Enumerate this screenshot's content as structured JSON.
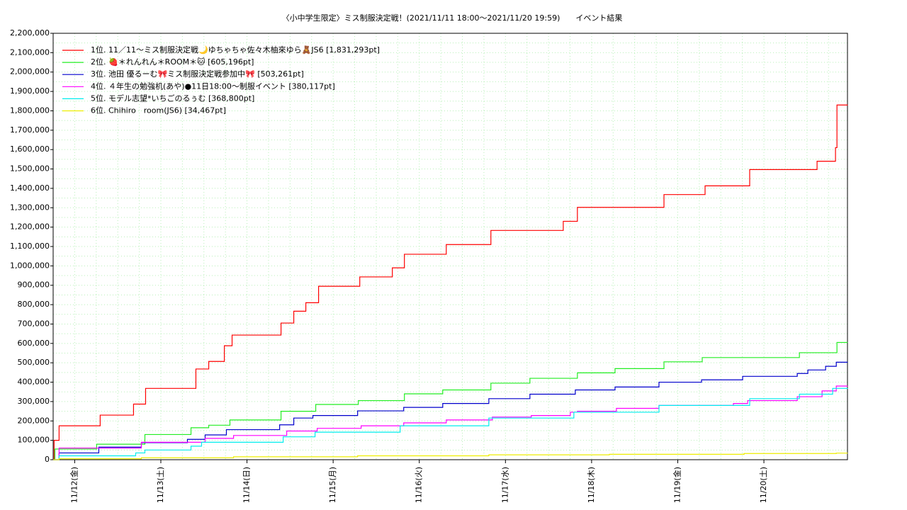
{
  "chart_data": {
    "type": "line",
    "step": true,
    "title": "〈小中学生限定〉ミス制服決定戦！(2021/11/11 18:00～2021/11/20 19:59)　　イベント結果",
    "xlim": [
      0.75,
      9.97
    ],
    "xticks": [
      {
        "value": 1,
        "label": "11/12(金)"
      },
      {
        "value": 2,
        "label": "11/13(土)"
      },
      {
        "value": 3,
        "label": "11/14(日)"
      },
      {
        "value": 4,
        "label": "11/15(月)"
      },
      {
        "value": 5,
        "label": "11/16(火)"
      },
      {
        "value": 6,
        "label": "11/17(水)"
      },
      {
        "value": 7,
        "label": "11/18(木)"
      },
      {
        "value": 8,
        "label": "11/19(金)"
      },
      {
        "value": 9,
        "label": "11/20(土)"
      }
    ],
    "ylim": [
      0,
      2200000
    ],
    "yticks": [
      0,
      {
        "value": 100000,
        "label": "100,000"
      },
      {
        "value": 200000,
        "label": "200,000"
      },
      {
        "value": 300000,
        "label": "300,000"
      },
      {
        "value": 400000,
        "label": "400,000"
      },
      {
        "value": 500000,
        "label": "500,000"
      },
      {
        "value": 600000,
        "label": "600,000"
      },
      {
        "value": 700000,
        "label": "700,000"
      },
      {
        "value": 800000,
        "label": "800,000"
      },
      {
        "value": 900000,
        "label": "900,000"
      },
      {
        "value": 1000000,
        "label": "1,000,000"
      },
      {
        "value": 1100000,
        "label": "1,100,000"
      },
      {
        "value": 1200000,
        "label": "1,200,000"
      },
      {
        "value": 1300000,
        "label": "1,300,000"
      },
      {
        "value": 1400000,
        "label": "1,400,000"
      },
      {
        "value": 1500000,
        "label": "1,500,000"
      },
      {
        "value": 1600000,
        "label": "1,600,000"
      },
      {
        "value": 1700000,
        "label": "1,700,000"
      },
      {
        "value": 1800000,
        "label": "1,800,000"
      },
      {
        "value": 1900000,
        "label": "1,900,000"
      },
      {
        "value": 2000000,
        "label": "2,000,000"
      },
      {
        "value": 2100000,
        "label": "2,100,000"
      },
      {
        "value": 2200000,
        "label": "2,200,000"
      }
    ],
    "grid": true,
    "legend": "upper left",
    "series": [
      {
        "name": "1位. 11／11〜ミス制服決定戦🌙ゆちゃちゃ佐々木柚來ゆら🧸JS6 [1,831,293pt]",
        "color": "#ff0000",
        "x": [
          0.75,
          0.761,
          0.819,
          1.296,
          1.683,
          1.823,
          2.407,
          2.556,
          2.737,
          2.827,
          3.395,
          3.543,
          3.683,
          3.831,
          4.309,
          4.687,
          4.827,
          5.313,
          5.831,
          6.671,
          6.835,
          7.84,
          8.317,
          8.835,
          9.617,
          9.831,
          9.848,
          9.97
        ],
        "values": [
          0,
          100000,
          175000,
          230000,
          287000,
          368000,
          468000,
          507000,
          588000,
          643000,
          705000,
          766000,
          810000,
          895000,
          943000,
          990000,
          1060000,
          1110000,
          1183000,
          1230000,
          1302000,
          1368000,
          1413000,
          1497000,
          1540000,
          1610000,
          1830000,
          1831293
        ]
      },
      {
        "name": "2位. 🍓＊れんれん＊ROOM＊🐱 [605,196pt]",
        "color": "#22ee22",
        "x": [
          0.75,
          0.77,
          1.255,
          1.815,
          2.35,
          2.556,
          2.802,
          3.395,
          3.798,
          4.292,
          4.827,
          5.272,
          5.831,
          6.284,
          6.835,
          7.272,
          7.84,
          8.284,
          9.412,
          9.848,
          9.97
        ],
        "values": [
          0,
          55000,
          80000,
          130000,
          165000,
          178000,
          205000,
          250000,
          285000,
          305000,
          340000,
          360000,
          395000,
          420000,
          448000,
          470000,
          505000,
          527000,
          552000,
          605000,
          605196
        ]
      },
      {
        "name": "3位. 池田 優るーむ🎀ミス制服決定戦参加中🎀 [503,261pt]",
        "color": "#0000cc",
        "x": [
          0.75,
          0.819,
          1.28,
          1.774,
          2.309,
          2.514,
          2.761,
          3.379,
          3.543,
          3.765,
          4.284,
          4.819,
          5.272,
          5.807,
          6.284,
          6.811,
          7.272,
          7.782,
          8.276,
          8.753,
          9.387,
          9.51,
          9.716,
          9.84,
          9.97
        ],
        "values": [
          0,
          35000,
          65000,
          88000,
          105000,
          128000,
          155000,
          180000,
          215000,
          228000,
          252000,
          270000,
          290000,
          315000,
          338000,
          360000,
          375000,
          400000,
          412000,
          430000,
          445000,
          463000,
          482000,
          503000,
          503261
        ]
      },
      {
        "name": "4位. ４年生の勉強机(あや)●11日18:00〜制服イベント [380,117pt]",
        "color": "#ff00ff",
        "x": [
          0.75,
          0.819,
          1.774,
          2.514,
          2.844,
          3.461,
          3.815,
          4.325,
          4.819,
          5.313,
          5.848,
          6.3,
          6.753,
          6.835,
          7.288,
          7.782,
          8.646,
          8.811,
          9.387,
          9.675,
          9.84,
          9.97
        ],
        "values": [
          0,
          60000,
          90000,
          110000,
          125000,
          148000,
          162000,
          175000,
          190000,
          205000,
          220000,
          228000,
          245000,
          250000,
          265000,
          280000,
          290000,
          305000,
          325000,
          355000,
          380000,
          380117
        ]
      },
      {
        "name": "5位. モデル志望*いちごのるぅむ [368,800pt]",
        "color": "#00eeee",
        "x": [
          0.75,
          0.819,
          1.708,
          1.815,
          2.35,
          2.473,
          3.42,
          3.79,
          4.778,
          5.807,
          6.794,
          7.782,
          8.835,
          9.412,
          9.798,
          9.97
        ],
        "values": [
          0,
          20000,
          35000,
          50000,
          70000,
          90000,
          118000,
          142000,
          175000,
          215000,
          245000,
          280000,
          315000,
          338000,
          368000,
          368800
        ]
      },
      {
        "name": "6位. Chihiro　room(JS6) [34,467pt]",
        "color": "#eeee00",
        "x": [
          0.75,
          0.819,
          1.774,
          2.844,
          4.284,
          5.807,
          7.206,
          8.77,
          9.84,
          9.97
        ],
        "values": [
          0,
          5000,
          10000,
          15000,
          20000,
          25000,
          28000,
          32000,
          34000,
          34467
        ]
      }
    ]
  }
}
